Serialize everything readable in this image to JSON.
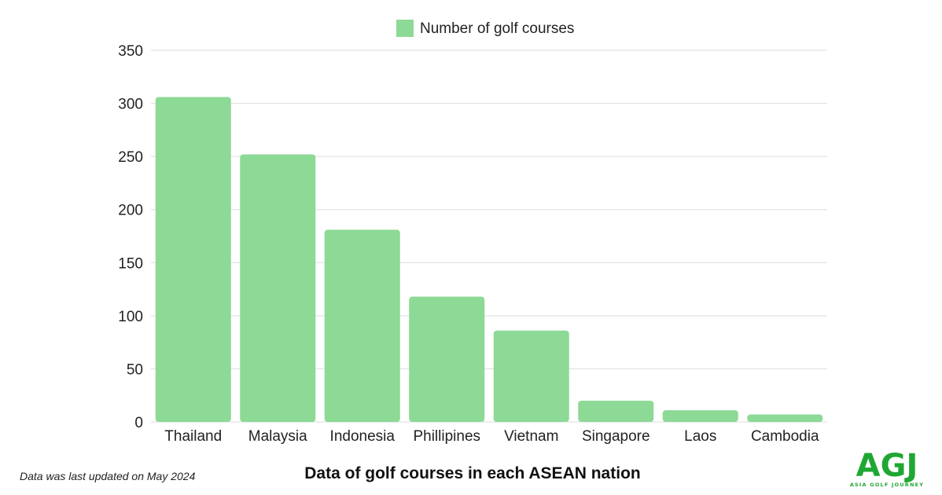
{
  "chart_data": {
    "type": "bar",
    "title": "Data of golf courses in each ASEAN nation",
    "xlabel": "",
    "ylabel": "",
    "categories": [
      "Thailand",
      "Malaysia",
      "Indonesia",
      "Phillipines",
      "Vietnam",
      "Singapore",
      "Laos",
      "Cambodia"
    ],
    "series": [
      {
        "name": "Number of golf courses",
        "values": [
          306,
          252,
          181,
          118,
          86,
          20,
          11,
          7
        ]
      }
    ],
    "ylim": [
      0,
      350
    ],
    "yticks": [
      0,
      50,
      100,
      150,
      200,
      250,
      300,
      350
    ],
    "grid": true,
    "legend_position": "top-center",
    "colors": {
      "bar": "#8dd996",
      "grid": "#dddddd"
    }
  },
  "footnote": "Data was last updated on May 2024",
  "logo": {
    "mark": "AGJ",
    "subtitle": "ASIA GOLF JOURNEY",
    "color": "#1fa733"
  }
}
